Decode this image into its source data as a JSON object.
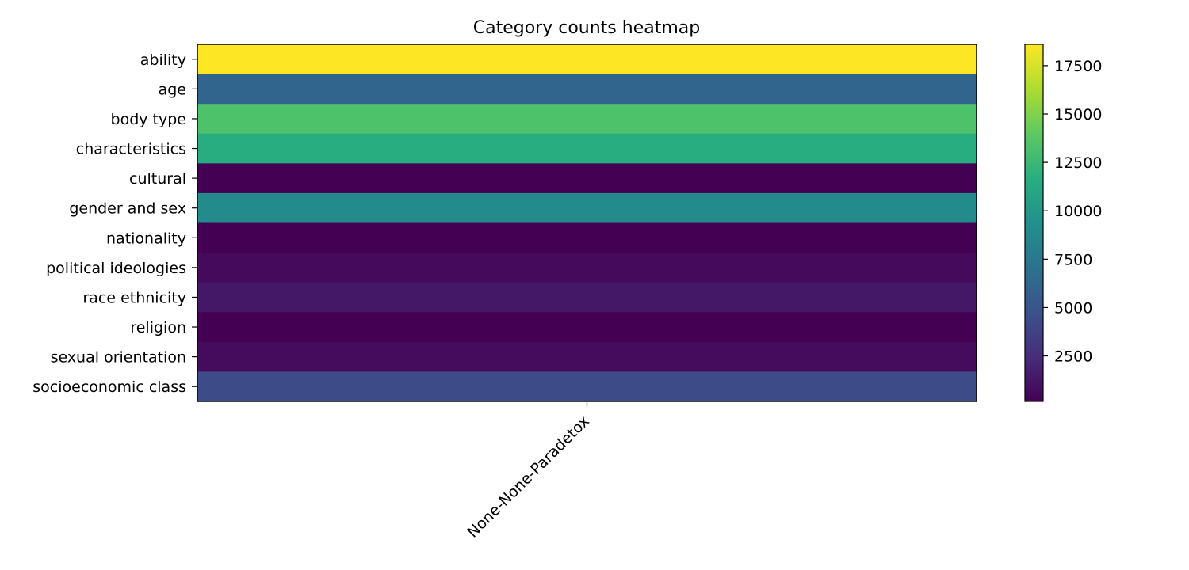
{
  "chart_data": {
    "type": "heatmap",
    "title": "Category counts heatmap",
    "xlabel": "",
    "ylabel": "",
    "columns": [
      "None-None-Paradetox"
    ],
    "rows": [
      "ability",
      "age",
      "body type",
      "characteristics",
      "cultural",
      "gender and sex",
      "nationality",
      "political ideologies",
      "race ethnicity",
      "religion",
      "sexual orientation",
      "socioeconomic class"
    ],
    "values": [
      [
        18600
      ],
      [
        6100
      ],
      [
        13300
      ],
      [
        11600
      ],
      [
        150
      ],
      [
        8900
      ],
      [
        150
      ],
      [
        600
      ],
      [
        1300
      ],
      [
        150
      ],
      [
        650
      ],
      [
        4400
      ]
    ],
    "colormap": "viridis",
    "colorbar": {
      "range": [
        150,
        18600
      ],
      "ticks": [
        2500,
        5000,
        7500,
        10000,
        12500,
        15000,
        17500
      ],
      "tick_labels": [
        "2500",
        "5000",
        "7500",
        "10000",
        "12500",
        "15000",
        "17500"
      ]
    },
    "grid": false
  }
}
